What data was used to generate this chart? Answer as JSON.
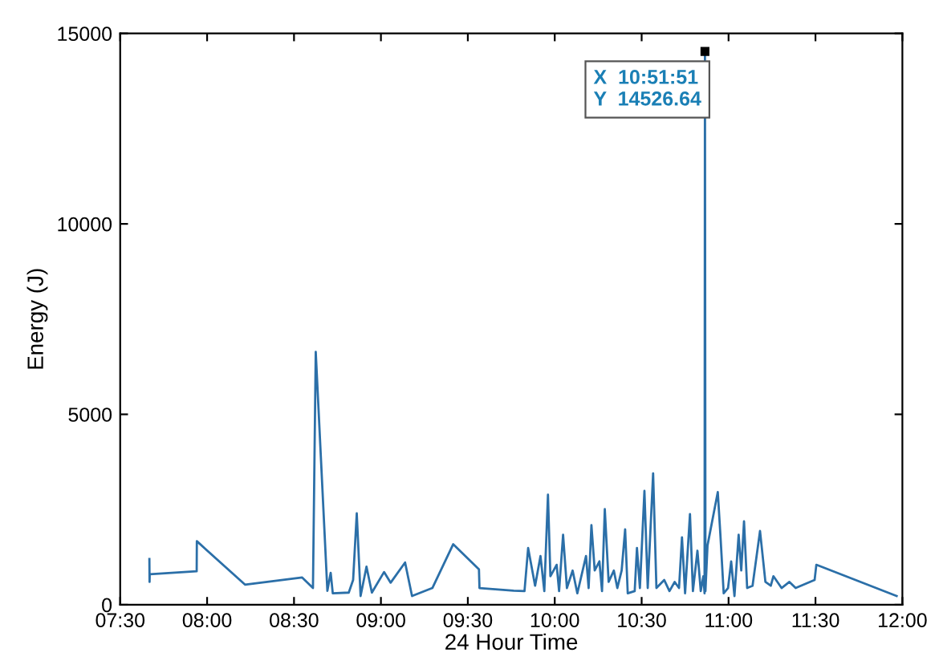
{
  "chart_data": {
    "type": "line",
    "xlabel": "24 Hour Time",
    "ylabel": "Energy (J)",
    "xlim": [
      7.5,
      12
    ],
    "xticks": [
      {
        "value": 7.5,
        "label": "07:30"
      },
      {
        "value": 8,
        "label": "08:00"
      },
      {
        "value": 8.5,
        "label": "08:30"
      },
      {
        "value": 9,
        "label": "09:00"
      },
      {
        "value": 9.5,
        "label": "09:30"
      },
      {
        "value": 10,
        "label": "10:00"
      },
      {
        "value": 10.5,
        "label": "10:30"
      },
      {
        "value": 11,
        "label": "11:00"
      },
      {
        "value": 11.5,
        "label": "11:30"
      },
      {
        "value": 12,
        "label": "12:00"
      }
    ],
    "ylim": [
      0,
      15000
    ],
    "yticks": [
      0,
      5000,
      10000,
      15000
    ],
    "grid": false,
    "legend": false,
    "marker": "none",
    "line_style": "solid",
    "series": [
      {
        "color": "#2b6fa8",
        "x": [
          7.668,
          7.669,
          7.67,
          7.94,
          7.941,
          8.218,
          8.547,
          8.609,
          8.625,
          8.692,
          8.711,
          8.723,
          8.815,
          8.84,
          8.861,
          8.883,
          8.917,
          8.948,
          9.018,
          9.056,
          9.139,
          9.179,
          9.296,
          9.416,
          9.564,
          9.567,
          9.764,
          9.826,
          9.847,
          9.887,
          9.918,
          9.94,
          9.961,
          9.975,
          10.011,
          10.025,
          10.048,
          10.07,
          10.103,
          10.13,
          10.18,
          10.195,
          10.211,
          10.23,
          10.257,
          10.272,
          10.288,
          10.31,
          10.34,
          10.36,
          10.385,
          10.405,
          10.42,
          10.46,
          10.473,
          10.49,
          10.516,
          10.535,
          10.566,
          10.585,
          10.63,
          10.66,
          10.69,
          10.715,
          10.732,
          10.75,
          10.778,
          10.795,
          10.821,
          10.84,
          10.855,
          10.862,
          10.8642,
          10.867,
          10.879,
          10.938,
          10.953,
          10.972,
          10.997,
          11.015,
          11.034,
          11.058,
          11.073,
          11.089,
          11.107,
          11.138,
          11.181,
          11.212,
          11.243,
          11.258,
          11.305,
          11.35,
          11.386,
          11.495,
          11.505,
          11.967
        ],
        "values": [
          1200,
          600,
          800,
          880,
          1670,
          530,
          715,
          440,
          6640,
          365,
          840,
          300,
          320,
          650,
          2400,
          230,
          1000,
          320,
          860,
          580,
          1110,
          230,
          440,
          1590,
          930,
          440,
          370,
          360,
          1490,
          500,
          1280,
          360,
          2890,
          750,
          1050,
          360,
          1840,
          440,
          900,
          300,
          1280,
          440,
          2090,
          900,
          1140,
          360,
          2510,
          600,
          900,
          440,
          900,
          1980,
          300,
          360,
          1490,
          440,
          2990,
          440,
          3450,
          440,
          650,
          360,
          600,
          440,
          1770,
          300,
          2380,
          360,
          1420,
          360,
          750,
          300,
          14526.64,
          360,
          1560,
          2960,
          1840,
          300,
          440,
          1140,
          230,
          1840,
          900,
          2190,
          440,
          500,
          1940,
          600,
          500,
          750,
          440,
          600,
          440,
          650,
          1050,
          230
        ]
      }
    ],
    "annotations": [
      {
        "text": "X  10:51:51\nY  14526.64",
        "x": 10.8642,
        "y": 14526.64
      }
    ]
  }
}
